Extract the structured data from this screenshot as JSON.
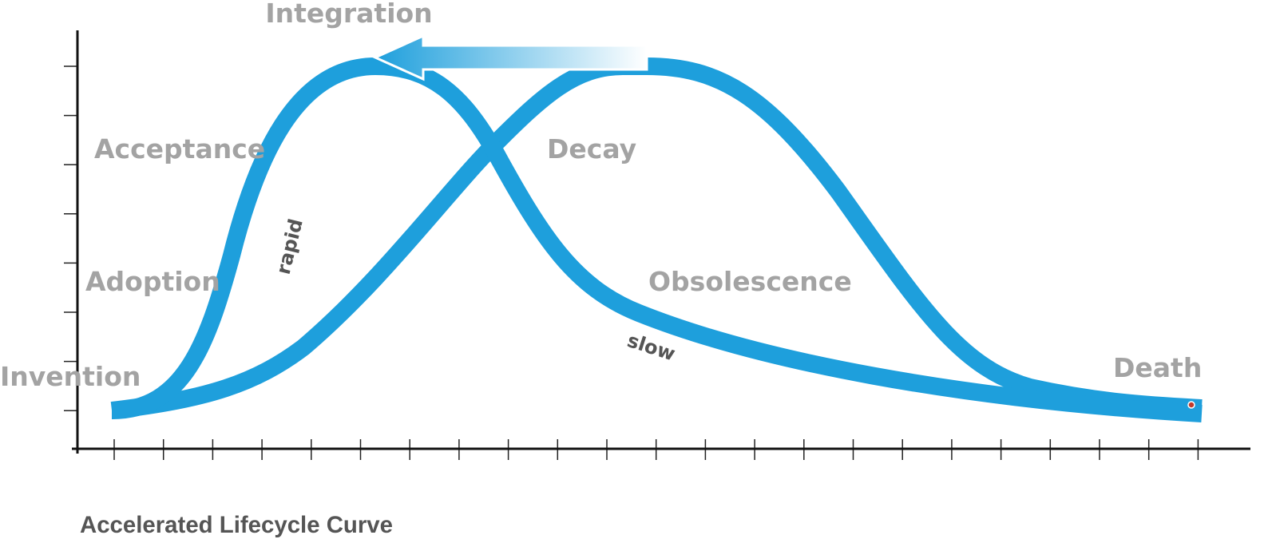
{
  "title": "Accelerated Lifecycle Curve",
  "stages": {
    "invention": "Invention",
    "adoption": "Adoption",
    "acceptance": "Acceptance",
    "integration": "Integration",
    "decay": "Decay",
    "obsolescence": "Obsolescence",
    "death": "Death"
  },
  "annotations": {
    "rapid": "rapid",
    "slow": "slow"
  }
}
